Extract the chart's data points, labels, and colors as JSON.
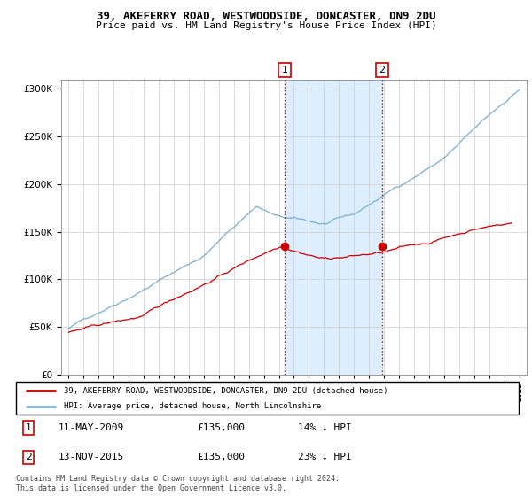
{
  "title": "39, AKEFERRY ROAD, WESTWOODSIDE, DONCASTER, DN9 2DU",
  "subtitle": "Price paid vs. HM Land Registry's House Price Index (HPI)",
  "legend_line1": "39, AKEFERRY ROAD, WESTWOODSIDE, DONCASTER, DN9 2DU (detached house)",
  "legend_line2": "HPI: Average price, detached house, North Lincolnshire",
  "transaction1": {
    "num": "1",
    "date": "11-MAY-2009",
    "price": "£135,000",
    "hpi": "14% ↓ HPI"
  },
  "transaction2": {
    "num": "2",
    "date": "13-NOV-2015",
    "price": "£135,000",
    "hpi": "23% ↓ HPI"
  },
  "footnote": "Contains HM Land Registry data © Crown copyright and database right 2024.\nThis data is licensed under the Open Government Licence v3.0.",
  "vline1_year": 2009.37,
  "vline2_year": 2015.87,
  "red_color": "#cc0000",
  "blue_color": "#7aadd4",
  "shade_color": "#ddeeff",
  "ylim": [
    0,
    310000
  ],
  "yticks": [
    0,
    50000,
    100000,
    150000,
    200000,
    250000,
    300000
  ],
  "xlim_start": 1994.5,
  "xlim_end": 2025.5,
  "sale1_year": 2009.37,
  "sale1_value": 135000,
  "sale2_year": 2015.87,
  "sale2_value": 135000
}
